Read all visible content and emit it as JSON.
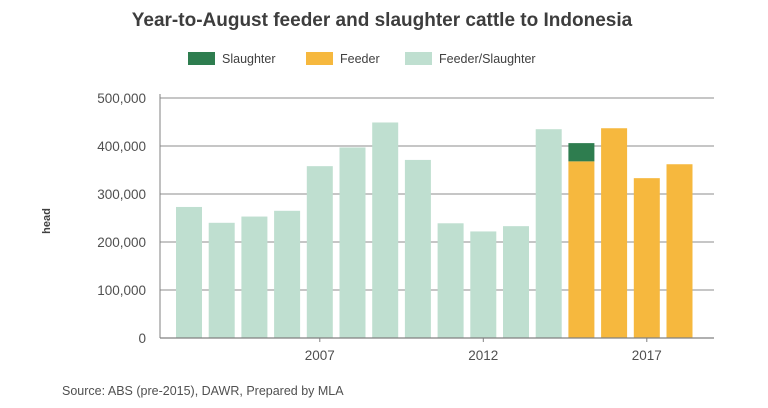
{
  "chart_data": {
    "type": "bar",
    "title": "Year-to-August feeder and slaughter cattle to Indonesia",
    "ylabel": "head",
    "xlabel": "",
    "ylim": [
      0,
      500000
    ],
    "y_ticks": [
      "0",
      "100,000",
      "200,000",
      "300,000",
      "400,000",
      "500,000"
    ],
    "y_tick_values": [
      0,
      100000,
      200000,
      300000,
      400000,
      500000
    ],
    "x_tick_labels": [
      {
        "label": "2007",
        "category": 2007
      },
      {
        "label": "2012",
        "category": 2012
      },
      {
        "label": "2017",
        "category": 2017
      }
    ],
    "categories": [
      2003,
      2004,
      2005,
      2006,
      2007,
      2008,
      2009,
      2010,
      2011,
      2012,
      2013,
      2014,
      2015,
      2016,
      2017,
      2018
    ],
    "stacked": true,
    "grid": true,
    "legend_position": "top",
    "series": [
      {
        "name": "Slaughter",
        "color": "#2e7d4f",
        "values": [
          0,
          0,
          0,
          0,
          0,
          0,
          0,
          0,
          0,
          0,
          0,
          0,
          38000,
          0,
          0,
          0
        ]
      },
      {
        "name": "Feeder",
        "color": "#f6b83e",
        "values": [
          0,
          0,
          0,
          0,
          0,
          0,
          0,
          0,
          0,
          0,
          0,
          0,
          368000,
          437000,
          333000,
          362000
        ]
      },
      {
        "name": "Feeder/Slaughter",
        "color": "#bfdfd0",
        "values": [
          273000,
          240000,
          253000,
          265000,
          358000,
          397000,
          449000,
          371000,
          239000,
          222000,
          233000,
          435000,
          0,
          0,
          0,
          0
        ]
      }
    ],
    "stack_order": [
      "Feeder/Slaughter",
      "Feeder",
      "Slaughter"
    ],
    "source": "Source: ABS (pre-2015), DAWR, Prepared by MLA"
  }
}
